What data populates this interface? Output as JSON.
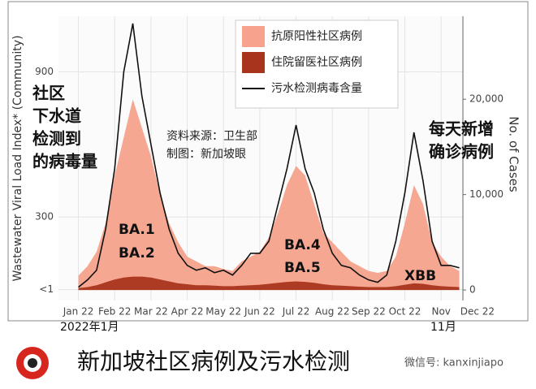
{
  "chart_data": {
    "type": "area",
    "annotations": {
      "left": [
        "社区",
        "下水道",
        "检测到",
        "的病毒量"
      ],
      "right": [
        "每天新增",
        "确诊病例"
      ],
      "source": [
        "资料来源：卫生部",
        "制图：新加坡眼"
      ],
      "variants": [
        "BA.1",
        "BA.2",
        "BA.4",
        "BA.5",
        "XBB"
      ],
      "start": "2022年1月",
      "end": "11月"
    },
    "footer": {
      "title": "新加坡社区病例及污水检测",
      "watermark": "微信号: kanxinjiapo"
    },
    "ylabel": "Wastewater Viral Load Index* (Community)",
    "y2label": "No. of Cases",
    "x": [
      0,
      0.25,
      0.5,
      0.75,
      1,
      1.25,
      1.5,
      1.75,
      2,
      2.25,
      2.5,
      2.75,
      3,
      3.25,
      3.5,
      3.75,
      4,
      4.25,
      4.5,
      4.75,
      5,
      5.25,
      5.5,
      5.75,
      6,
      6.25,
      6.5,
      6.75,
      7,
      7.25,
      7.5,
      7.75,
      8,
      8.25,
      8.5,
      8.75,
      9,
      9.25,
      9.5,
      9.75,
      10,
      10.25,
      10.5
    ],
    "xlim": [
      -0.55,
      10.6
    ],
    "xticks": [
      {
        "value": 0,
        "label": "Jan 22"
      },
      {
        "value": 1,
        "label": "Feb 22"
      },
      {
        "value": 2,
        "label": "Mar 22"
      },
      {
        "value": 3,
        "label": "Apr 22"
      },
      {
        "value": 4,
        "label": "May 22"
      },
      {
        "value": 5,
        "label": "Jun 22"
      },
      {
        "value": 6,
        "label": "Jul 22"
      },
      {
        "value": 7,
        "label": "Aug 22"
      },
      {
        "value": 8,
        "label": "Sep 22"
      },
      {
        "value": 9,
        "label": "Oct 22"
      },
      {
        "value": 10,
        "label": "Nov"
      },
      {
        "value": 11,
        "label": "Dec 22"
      }
    ],
    "ylim": [
      -45,
      1130
    ],
    "yticks": [
      {
        "value": 0,
        "label": "<1"
      },
      300,
      900
    ],
    "y2lim": [
      -1100,
      28700
    ],
    "y2ticks": [
      0,
      {
        "value": 10000,
        "label": "10,000"
      },
      {
        "value": 20000,
        "label": "20,000"
      }
    ],
    "grid": true,
    "legend": "top",
    "series": [
      {
        "name": "抗原阳性社区病例",
        "color": "#f6a28c",
        "axis": "y2",
        "kind": "area",
        "values": [
          1500,
          2500,
          4000,
          7000,
          12000,
          16000,
          20000,
          17000,
          14000,
          10000,
          7000,
          5000,
          3500,
          3000,
          2500,
          2500,
          2200,
          2000,
          3000,
          3500,
          4000,
          5500,
          8000,
          11000,
          13000,
          12000,
          9000,
          6000,
          5000,
          4000,
          3000,
          2500,
          2000,
          1800,
          2000,
          3500,
          7000,
          11000,
          9000,
          5000,
          3500,
          2500,
          2000
        ]
      },
      {
        "name": "住院留医社区病例",
        "color": "#a9341d",
        "axis": "y2",
        "kind": "area",
        "values": [
          200,
          300,
          500,
          800,
          1100,
          1300,
          1400,
          1400,
          1300,
          1100,
          900,
          700,
          600,
          500,
          500,
          450,
          400,
          400,
          450,
          500,
          550,
          650,
          750,
          850,
          900,
          850,
          750,
          600,
          500,
          450,
          400,
          350,
          300,
          300,
          300,
          400,
          550,
          700,
          650,
          500,
          400,
          350,
          300
        ]
      },
      {
        "name": "污水检测病毒含量",
        "color": "#111111",
        "axis": "y",
        "kind": "line",
        "values": [
          10,
          40,
          80,
          250,
          500,
          900,
          1100,
          800,
          600,
          400,
          250,
          150,
          100,
          80,
          90,
          70,
          80,
          60,
          100,
          150,
          150,
          200,
          350,
          500,
          680,
          500,
          400,
          250,
          150,
          100,
          90,
          60,
          40,
          30,
          60,
          200,
          400,
          650,
          450,
          200,
          100,
          100,
          90
        ]
      }
    ]
  }
}
